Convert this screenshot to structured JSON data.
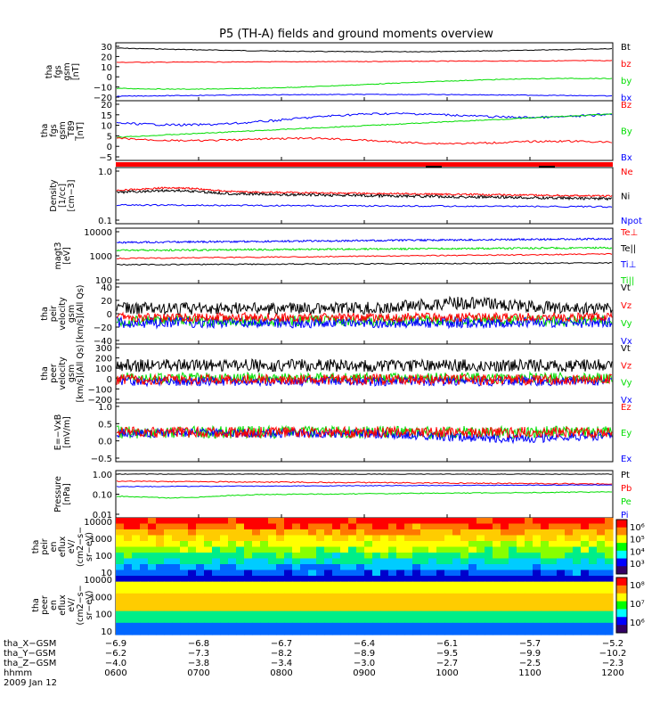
{
  "title": "P5 (TH-A) fields and ground moments overview",
  "colors": {
    "black": "#000000",
    "red": "#ff0000",
    "green": "#00dd00",
    "blue": "#0000ff"
  },
  "chart_data": {
    "type": "line",
    "x_time_ticks": [
      "0600",
      "0700",
      "0800",
      "0900",
      "1000",
      "1100",
      "1200"
    ],
    "panels": [
      {
        "ylabel": [
          "tha",
          "fgs",
          "gsm",
          "[nT]"
        ],
        "yticks": [
          "30",
          "20",
          "10",
          "0",
          "−10",
          "−20"
        ],
        "legend": [
          {
            "label": "Bt",
            "color": "black"
          },
          {
            "label": "bz",
            "color": "red"
          },
          {
            "label": "by",
            "color": "green"
          },
          {
            "label": "bx",
            "color": "blue"
          }
        ]
      },
      {
        "ylabel": [
          "tha",
          "fgs",
          "gsm",
          "_T89",
          "[nT]"
        ],
        "yticks": [
          "20",
          "15",
          "10",
          "5",
          "0",
          "−5"
        ],
        "legend": [
          {
            "label": "Bz",
            "color": "red"
          },
          {
            "label": "By",
            "color": "green"
          },
          {
            "label": "Bx",
            "color": "blue"
          }
        ]
      },
      {
        "ylabel": [
          "Density",
          "[1/cc]",
          "[cm−3]"
        ],
        "yticks": [
          "1.0",
          "0.1"
        ],
        "legend": [
          {
            "label": "Ne",
            "color": "red"
          },
          {
            "label": "Ni",
            "color": "black"
          },
          {
            "label": "Npot",
            "color": "blue"
          }
        ]
      },
      {
        "ylabel": [
          "magt3",
          "[eV]"
        ],
        "yticks": [
          "10000",
          "1000",
          "100"
        ],
        "legend": [
          {
            "label": "Te⊥",
            "color": "red"
          },
          {
            "label": "Te||",
            "color": "black"
          },
          {
            "label": "Ti⊥",
            "color": "blue"
          },
          {
            "label": "Ti||",
            "color": "green"
          }
        ]
      },
      {
        "ylabel": [
          "tha",
          "peir",
          "velocity",
          "gsm",
          "[km/s](All Qs)"
        ],
        "yticks": [
          "40",
          "20",
          "0",
          "−20",
          "−40"
        ],
        "legend": [
          {
            "label": "Vt",
            "color": "black"
          },
          {
            "label": "Vz",
            "color": "red"
          },
          {
            "label": "Vy",
            "color": "green"
          },
          {
            "label": "Vx",
            "color": "blue"
          }
        ]
      },
      {
        "ylabel": [
          "tha",
          "peer",
          "velocity",
          "gsm",
          "[km/s](All Qs)"
        ],
        "yticks": [
          "300",
          "200",
          "100",
          "0",
          "−100",
          "−200"
        ],
        "legend": [
          {
            "label": "Vt",
            "color": "black"
          },
          {
            "label": "Vz",
            "color": "red"
          },
          {
            "label": "Vy",
            "color": "green"
          },
          {
            "label": "Vx",
            "color": "blue"
          }
        ]
      },
      {
        "ylabel": [
          "E=−VxB",
          "[mV/m]"
        ],
        "yticks": [
          "1.0",
          "0.5",
          "0.0",
          "−0.5"
        ],
        "legend": [
          {
            "label": "Ez",
            "color": "red"
          },
          {
            "label": "Ey",
            "color": "green"
          },
          {
            "label": "Ex",
            "color": "blue"
          }
        ]
      },
      {
        "ylabel": [
          "Pressure",
          "[nPa]"
        ],
        "yticks": [
          "1.00",
          "0.10",
          "0.01"
        ],
        "legend": [
          {
            "label": "Pt",
            "color": "black"
          },
          {
            "label": "Pb",
            "color": "red"
          },
          {
            "label": "Pe",
            "color": "green"
          },
          {
            "label": "Pi",
            "color": "blue"
          }
        ]
      },
      {
        "ylabel": [
          "tha",
          "peir",
          "en",
          "eflux",
          "eV/",
          "(cm2−s−",
          "sr−eV)"
        ],
        "yticks": [
          "10000",
          "1000",
          "100",
          "10"
        ],
        "colorbar_ticks": [
          "10⁶",
          "10⁵",
          "10⁴",
          "10³"
        ]
      },
      {
        "ylabel": [
          "tha",
          "peer",
          "en",
          "eflux",
          "eV/",
          "(cm2−s−",
          "sr−eV)"
        ],
        "yticks": [
          "10000",
          "1000",
          "100",
          "10"
        ],
        "colorbar_ticks": [
          "10⁸",
          "10⁷",
          "10⁶"
        ]
      }
    ],
    "ephemeris": {
      "labels": [
        "tha_X−GSM",
        "tha_Y−GSM",
        "tha_Z−GSM",
        "hhmm",
        "2009 Jan 12"
      ],
      "x_gsm": [
        "−6.9",
        "−6.8",
        "−6.7",
        "−6.4",
        "−6.1",
        "−5.7",
        "−5.2"
      ],
      "y_gsm": [
        "−6.2",
        "−7.3",
        "−8.2",
        "−8.9",
        "−9.5",
        "−9.9",
        "−10.2"
      ],
      "z_gsm": [
        "−4.0",
        "−3.8",
        "−3.4",
        "−3.0",
        "−2.7",
        "−2.5",
        "−2.3"
      ]
    }
  }
}
